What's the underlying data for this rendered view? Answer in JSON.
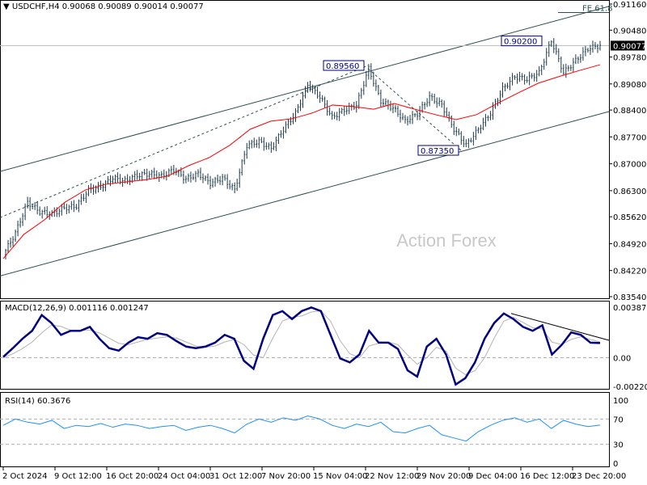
{
  "header": {
    "menu_icon": "triangle-down-icon",
    "symbol": "USDCHF,H4",
    "ohlc": "0.90068 0.90089 0.90014 0.90077"
  },
  "watermark": "Action Forex",
  "colors": {
    "bars": "#1f3a4a",
    "ma": "#ff0000",
    "macd": "#000080",
    "signal": "#b4b4b4",
    "rsi": "#1e90ff",
    "channel": "#2f4f4f",
    "label_box": "#000080"
  },
  "chart_data": [
    {
      "type": "bar",
      "panel": "price",
      "title": "USDCHF,H4",
      "yticks": [
        "0.91160",
        "0.90480",
        "0.89780",
        "0.89080",
        "0.88400",
        "0.87700",
        "0.87000",
        "0.86300",
        "0.85620",
        "0.84920",
        "0.84220",
        "0.83540"
      ],
      "ylim": [
        0.8354,
        0.9116
      ],
      "current_price": "0.90077",
      "close": [
        0.8463,
        0.852,
        0.86,
        0.8575,
        0.8569,
        0.8585,
        0.859,
        0.8632,
        0.864,
        0.8663,
        0.8655,
        0.867,
        0.8674,
        0.8668,
        0.8685,
        0.866,
        0.8674,
        0.865,
        0.8663,
        0.8632,
        0.8748,
        0.8758,
        0.874,
        0.879,
        0.8832,
        0.8906,
        0.8874,
        0.8821,
        0.884,
        0.8853,
        0.8948,
        0.8863,
        0.8845,
        0.8811,
        0.883,
        0.8874,
        0.8853,
        0.879,
        0.8748,
        0.879,
        0.8832,
        0.8895,
        0.8927,
        0.892,
        0.8937,
        0.9021,
        0.8937,
        0.8969,
        0.9,
        0.9008
      ],
      "moving_average": [
        0.8453,
        0.8516,
        0.8554,
        0.86,
        0.8632,
        0.8647,
        0.8653,
        0.8659,
        0.8668,
        0.8695,
        0.8716,
        0.8748,
        0.879,
        0.8811,
        0.8817,
        0.8832,
        0.8853,
        0.8849,
        0.8842,
        0.8857,
        0.8842,
        0.8828,
        0.8815,
        0.8828,
        0.8857,
        0.8884,
        0.891,
        0.8927,
        0.8943,
        0.8958
      ],
      "annotations": [
        {
          "text": "0.89560",
          "price": 0.8956
        },
        {
          "text": "0.87350",
          "price": 0.8735
        },
        {
          "text": "0.90200",
          "price": 0.902
        },
        {
          "text": "FE 61.8",
          "price": 0.9098
        }
      ],
      "channel": {
        "upper": [
          0.868,
          0.911
        ],
        "lower": [
          0.8408,
          0.8836
        ],
        "median_dashed": [
          0.856,
          0.8956
        ]
      },
      "time_ticks": [
        "2 Oct 2024",
        "9 Oct 12:00",
        "16 Oct 20:00",
        "24 Oct 04:00",
        "31 Oct 12:00",
        "7 Nov 20:00",
        "15 Nov 04:00",
        "22 Nov 12:00",
        "29 Nov 20:00",
        "9 Dec 04:00",
        "16 Dec 12:00",
        "23 Dec 20:00"
      ]
    },
    {
      "type": "line",
      "panel": "macd",
      "title": "MACD(12,26,9) 0.001116 0.001247",
      "yticks": [
        "0.003873",
        "0.00",
        "-0.002201"
      ],
      "ylim": [
        -0.002201,
        0.003873
      ],
      "macd": [
        6e-05,
        0.00073,
        0.00145,
        0.00206,
        0.00327,
        0.00266,
        0.00175,
        0.00206,
        0.00206,
        0.00236,
        0.00145,
        0.00073,
        0.00054,
        0.00115,
        0.00157,
        0.00145,
        0.00188,
        0.00175,
        0.00127,
        0.00085,
        0.00073,
        0.00085,
        0.00115,
        0.00175,
        0.00145,
        -0.00024,
        -0.00085,
        0.00145,
        0.00327,
        0.00357,
        0.00296,
        0.00357,
        0.00385,
        0.00357,
        0.00175,
        -6e-05,
        -0.00036,
        0.00024,
        0.00206,
        0.00115,
        0.00115,
        0.00067,
        -0.00097,
        -0.00145,
        0.00085,
        0.00145,
        0.00024,
        -0.00206,
        -0.00157,
        -0.00036,
        0.00145,
        0.00266,
        0.00339,
        0.00296,
        0.00236,
        0.00206,
        0.00248,
        0.00024,
        0.00097,
        0.00194,
        0.00175,
        0.00115,
        0.00112
      ],
      "signal": [
        0.0,
        0.0003,
        0.0007,
        0.0012,
        0.0019,
        0.0025,
        0.0024,
        0.0021,
        0.0021,
        0.0021,
        0.0019,
        0.0015,
        0.0011,
        0.001,
        0.0012,
        0.0014,
        0.0015,
        0.0016,
        0.0015,
        0.0012,
        0.0009,
        0.0008,
        0.0009,
        0.0012,
        0.0014,
        0.001,
        0.0002,
        0.0,
        0.0015,
        0.0028,
        0.0031,
        0.0032,
        0.0035,
        0.0036,
        0.0028,
        0.0013,
        0.0003,
        0.0,
        0.0009,
        0.0011,
        0.0012,
        0.001,
        0.0002,
        -0.0005,
        0.0,
        0.0008,
        0.0005,
        -0.0008,
        -0.0013,
        -0.001,
        0.0,
        0.0015,
        0.0028,
        0.0031,
        0.0027,
        0.0023,
        0.0022,
        0.0012,
        0.001,
        0.0014,
        0.0016,
        0.0014,
        0.0012
      ],
      "trendline": [
        0.00339,
        0.00133
      ]
    },
    {
      "type": "line",
      "panel": "rsi",
      "title": "RSI(14) 60.3676",
      "yticks": [
        "100",
        "70",
        "30",
        "0"
      ],
      "ylim": [
        0,
        100
      ],
      "levels": [
        70,
        30
      ],
      "rsi": [
        60,
        70,
        65,
        62,
        68,
        55,
        60,
        58,
        63,
        57,
        62,
        60,
        55,
        58,
        60,
        52,
        57,
        60,
        55,
        48,
        62,
        70,
        65,
        72,
        68,
        75,
        70,
        60,
        55,
        62,
        58,
        65,
        50,
        48,
        55,
        60,
        45,
        40,
        35,
        50,
        60,
        68,
        72,
        65,
        70,
        55,
        68,
        62,
        58,
        60.37
      ]
    }
  ]
}
